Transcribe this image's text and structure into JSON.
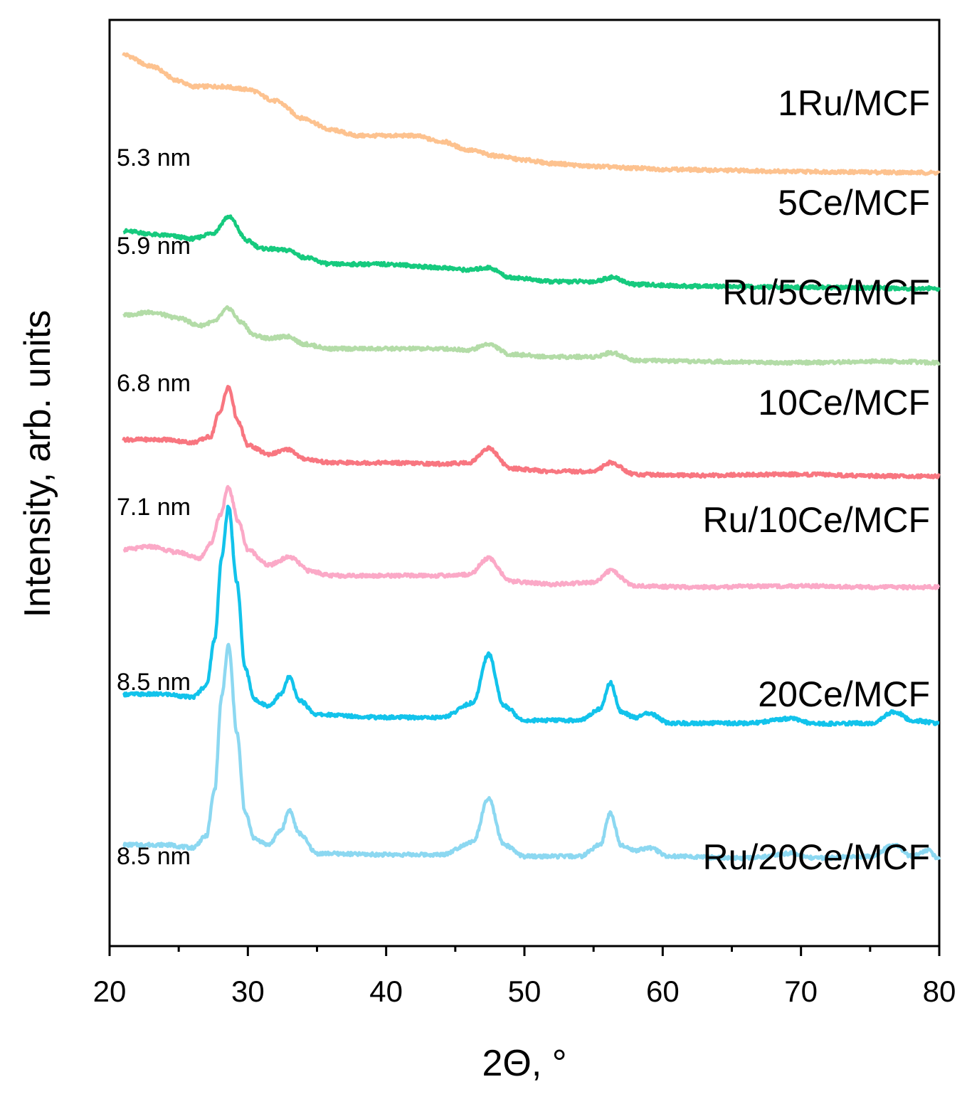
{
  "chart_data": {
    "type": "line",
    "title": "",
    "xlabel": "2Θ, °",
    "ylabel": "Intensity, arb. units",
    "xlim": [
      20,
      80
    ],
    "xticks": [
      "20",
      "30",
      "40",
      "50",
      "60",
      "70",
      "80"
    ],
    "grid": false,
    "legend": "inline labels at right of each curve",
    "series": [
      {
        "name": "1Ru/MCF",
        "color": "#FDC28F",
        "crystallite_size": "",
        "x": [
          21,
          23,
          25,
          26,
          28,
          30,
          32,
          34,
          36,
          38,
          40,
          42,
          44,
          46,
          48,
          50,
          52,
          55,
          58,
          60,
          65,
          70,
          75,
          80
        ],
        "offset": [
          7.9,
          7.7,
          7.45,
          7.35,
          7.35,
          7.3,
          7.1,
          6.8,
          6.6,
          6.5,
          6.5,
          6.5,
          6.4,
          6.25,
          6.15,
          6.08,
          6.02,
          5.97,
          5.94,
          5.92,
          5.9,
          5.88,
          5.87,
          5.86
        ]
      },
      {
        "name": "5Ce/MCF",
        "color": "#16CA7E",
        "crystallite_size": "5.3 nm",
        "x": [
          21,
          24,
          26,
          27.5,
          28.6,
          30,
          31,
          33,
          34,
          36,
          40,
          44,
          46,
          47.4,
          49,
          52,
          55,
          56.3,
          58,
          62,
          70,
          80
        ],
        "offset": [
          4.85,
          4.78,
          4.72,
          4.82,
          5.1,
          4.68,
          4.55,
          4.52,
          4.4,
          4.28,
          4.28,
          4.22,
          4.18,
          4.22,
          4.05,
          3.98,
          3.98,
          4.05,
          3.93,
          3.9,
          3.88,
          3.86
        ]
      },
      {
        "name": "Ru/5Ce/MCF",
        "color": "#B3DCA7",
        "crystallite_size": "5.9 nm",
        "x": [
          21,
          23,
          25,
          26.5,
          27.5,
          28.6,
          29.5,
          30.5,
          31.5,
          33,
          34,
          36,
          40,
          44,
          46,
          47.4,
          49,
          52,
          55,
          56.3,
          58,
          62,
          70,
          76.5,
          80
        ],
        "offset": [
          3.4,
          3.45,
          3.35,
          3.22,
          3.28,
          3.52,
          3.28,
          3.05,
          3.0,
          3.03,
          2.9,
          2.82,
          2.82,
          2.82,
          2.8,
          2.9,
          2.72,
          2.68,
          2.68,
          2.75,
          2.62,
          2.6,
          2.58,
          2.6,
          2.58
        ]
      },
      {
        "name": "10Ce/MCF",
        "color": "#F87680",
        "crystallite_size": "6.8 nm",
        "x": [
          21,
          24,
          26,
          27.3,
          27.9,
          28.6,
          29.3,
          30,
          31.5,
          33,
          34,
          36,
          40,
          44,
          46,
          47.4,
          49,
          52,
          55,
          56.2,
          58,
          62,
          69.3,
          76.5,
          80
        ],
        "offset": [
          1.25,
          1.25,
          1.2,
          1.3,
          1.7,
          2.15,
          1.55,
          1.15,
          1.0,
          1.08,
          0.92,
          0.85,
          0.85,
          0.83,
          0.85,
          1.1,
          0.75,
          0.7,
          0.7,
          0.85,
          0.65,
          0.63,
          0.65,
          0.62,
          0.62
        ]
      },
      {
        "name": "Ru/10Ce/MCF",
        "color": "#FBA9C7",
        "crystallite_size": "7.1 nm",
        "x": [
          21,
          23,
          25,
          26.5,
          27.3,
          28,
          28.6,
          29.3,
          30,
          31.5,
          33,
          34.5,
          36,
          40,
          44,
          46,
          47.4,
          49,
          52,
          55,
          56.2,
          58,
          62,
          69.3,
          76.5,
          80
        ],
        "offset": [
          -0.65,
          -0.6,
          -0.7,
          -0.8,
          -0.55,
          -0.05,
          0.42,
          -0.15,
          -0.65,
          -0.92,
          -0.78,
          -1.02,
          -1.1,
          -1.1,
          -1.1,
          -1.08,
          -0.8,
          -1.2,
          -1.25,
          -1.22,
          -1.02,
          -1.28,
          -1.3,
          -1.28,
          -1.3,
          -1.3
        ]
      },
      {
        "name": "20Ce/MCF",
        "color": "#12C3EB",
        "crystallite_size": "8.5 nm",
        "x": [
          21,
          24,
          26,
          27,
          27.6,
          28.1,
          28.6,
          29.2,
          29.8,
          30.5,
          31.5,
          32.4,
          33,
          33.7,
          35,
          40,
          44,
          46.3,
          47.4,
          48.5,
          50,
          54,
          55.5,
          56.2,
          57,
          58,
          59,
          60.5,
          66,
          69.3,
          71,
          75,
          76.8,
          78,
          80
        ],
        "offset": [
          -3.15,
          -3.15,
          -3.2,
          -3.0,
          -2.2,
          -0.8,
          0.1,
          -1.2,
          -2.7,
          -3.25,
          -3.35,
          -3.15,
          -2.85,
          -3.25,
          -3.5,
          -3.55,
          -3.55,
          -3.3,
          -2.45,
          -3.35,
          -3.6,
          -3.6,
          -3.4,
          -2.95,
          -3.45,
          -3.55,
          -3.48,
          -3.65,
          -3.65,
          -3.57,
          -3.66,
          -3.65,
          -3.45,
          -3.6,
          -3.65
        ]
      },
      {
        "name": "Ru/20Ce/MCF",
        "color": "#8CD8F1",
        "crystallite_size": "8.5 nm",
        "x": [
          21,
          24,
          26,
          27,
          27.6,
          28.1,
          28.6,
          29.2,
          29.8,
          30.5,
          31.5,
          32.4,
          33,
          33.7,
          35,
          40,
          44,
          46.3,
          47.4,
          48.5,
          50,
          54,
          55.5,
          56.2,
          57,
          58,
          59,
          60.5,
          66,
          69.3,
          71,
          75,
          76.8,
          78,
          79.2,
          80
        ],
        "offset": [
          -5.75,
          -5.75,
          -5.8,
          -5.6,
          -4.8,
          -3.2,
          -2.3,
          -3.8,
          -5.2,
          -5.65,
          -5.75,
          -5.5,
          -5.15,
          -5.55,
          -5.9,
          -5.92,
          -5.92,
          -5.7,
          -4.95,
          -5.75,
          -5.95,
          -5.95,
          -5.75,
          -5.2,
          -5.75,
          -5.85,
          -5.8,
          -5.95,
          -5.98,
          -5.9,
          -5.98,
          -5.95,
          -5.75,
          -5.95,
          -5.85,
          -6.0
        ]
      }
    ]
  }
}
